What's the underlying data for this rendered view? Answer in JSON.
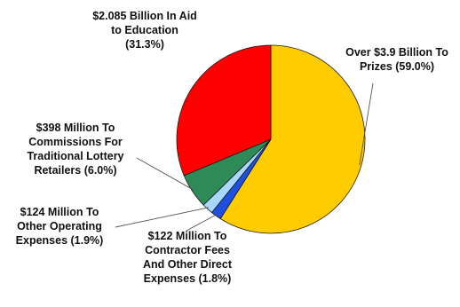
{
  "chart_data": {
    "type": "pie",
    "start_angle_deg": 0,
    "direction": "clockwise",
    "slices": [
      {
        "name": "Prizes",
        "value": 59.0,
        "color": "#FFCC00",
        "label_lines": [
          "Over $3.9 Billion To",
          "Prizes (59.0%)"
        ]
      },
      {
        "name": "Contractor Fees And Other Direct Expenses",
        "value": 1.8,
        "color": "#1E4FE0",
        "label_lines": [
          "$122 Million To",
          "Contractor Fees",
          "And Other Direct",
          "Expenses (1.8%)"
        ]
      },
      {
        "name": "Other Operating Expenses",
        "value": 1.9,
        "color": "#A8D8FF",
        "label_lines": [
          "$124 Million To",
          "Other Operating",
          "Expenses (1.9%)"
        ]
      },
      {
        "name": "Commissions For Traditional Lottery Retailers",
        "value": 6.0,
        "color": "#2E8B57",
        "label_lines": [
          "$398 Million To",
          "Commissions For",
          "Traditional Lottery",
          "Retailers (6.0%)"
        ]
      },
      {
        "name": "Aid to Education",
        "value": 31.3,
        "color": "#FF0000",
        "label_lines": [
          "$2.085 Billion In Aid",
          "to Education",
          "(31.3%)"
        ]
      }
    ]
  }
}
